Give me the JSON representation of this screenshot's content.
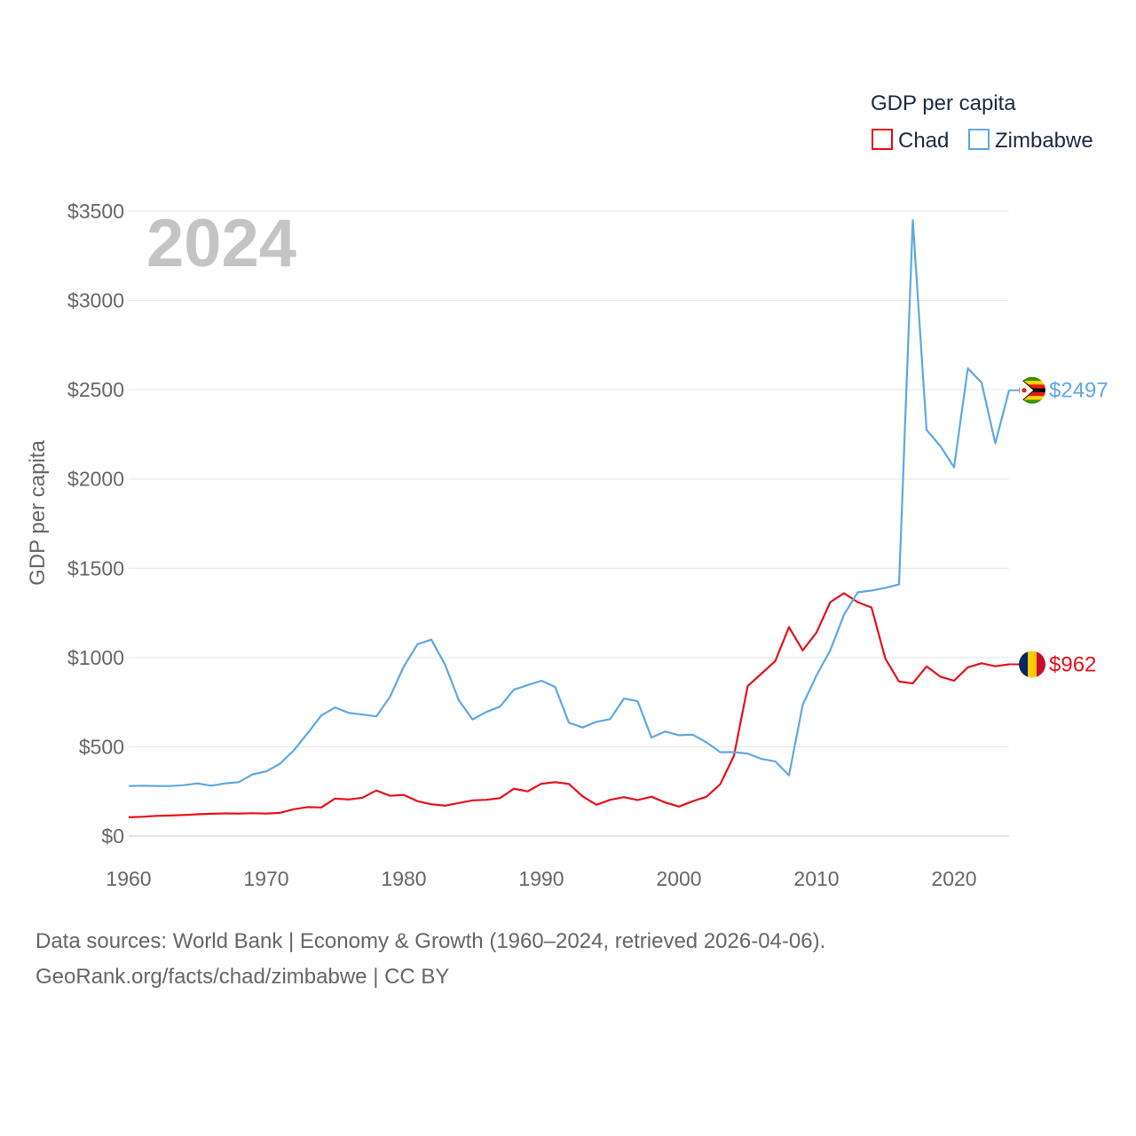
{
  "chart_data": {
    "type": "line",
    "legend_title": "GDP per capita",
    "year_label": "2024",
    "ylabel": "GDP per capita",
    "xlabel": "",
    "xlim": [
      1960,
      2024
    ],
    "ylim": [
      0,
      3500
    ],
    "x_ticks": [
      "1960",
      "1970",
      "1980",
      "1990",
      "2000",
      "2010",
      "2020"
    ],
    "y_ticks": [
      "$0",
      "$500",
      "$1000",
      "$1500",
      "$2000",
      "$2500",
      "$3000",
      "$3500"
    ],
    "grid": true,
    "legend_position": "top-right",
    "x": [
      1960,
      1961,
      1962,
      1963,
      1964,
      1965,
      1966,
      1967,
      1968,
      1969,
      1970,
      1971,
      1972,
      1973,
      1974,
      1975,
      1976,
      1977,
      1978,
      1979,
      1980,
      1981,
      1982,
      1983,
      1984,
      1985,
      1986,
      1987,
      1988,
      1989,
      1990,
      1991,
      1992,
      1993,
      1994,
      1995,
      1996,
      1997,
      1998,
      1999,
      2000,
      2001,
      2002,
      2003,
      2004,
      2005,
      2006,
      2007,
      2008,
      2009,
      2010,
      2011,
      2012,
      2013,
      2014,
      2015,
      2016,
      2017,
      2018,
      2019,
      2020,
      2021,
      2022,
      2023,
      2024
    ],
    "series": [
      {
        "name": "Chad",
        "color": "#e8101a",
        "end_label": "$962",
        "flag": "chad",
        "values": [
          105,
          108,
          113,
          115,
          118,
          122,
          125,
          127,
          126,
          128,
          126,
          130,
          150,
          162,
          160,
          210,
          205,
          215,
          255,
          225,
          230,
          195,
          178,
          170,
          185,
          200,
          203,
          213,
          265,
          250,
          293,
          302,
          292,
          222,
          175,
          203,
          218,
          202,
          220,
          188,
          165,
          195,
          220,
          290,
          450,
          840,
          910,
          980,
          1170,
          1040,
          1140,
          1310,
          1360,
          1310,
          1280,
          995,
          865,
          855,
          950,
          893,
          870,
          945,
          968,
          951,
          962
        ]
      },
      {
        "name": "Zimbabwe",
        "color": "#5ea7e6",
        "end_label": "$2497",
        "flag": "zimbabwe",
        "values": [
          280,
          282,
          280,
          280,
          285,
          295,
          282,
          295,
          302,
          345,
          362,
          405,
          480,
          575,
          675,
          720,
          690,
          680,
          670,
          780,
          950,
          1075,
          1100,
          960,
          760,
          653,
          695,
          725,
          820,
          845,
          870,
          835,
          635,
          608,
          640,
          655,
          770,
          755,
          552,
          585,
          565,
          568,
          525,
          470,
          470,
          462,
          432,
          418,
          340,
          735,
          900,
          1040,
          1240,
          1365,
          1375,
          1390,
          1410,
          3450,
          2275,
          2185,
          2065,
          2620,
          2540,
          2200,
          2497
        ]
      }
    ]
  },
  "source": {
    "line1": "Data sources: World Bank | Economy & Growth (1960–2024, retrieved 2026-04-06).",
    "line2": "GeoRank.org/facts/chad/zimbabwe | CC BY"
  }
}
